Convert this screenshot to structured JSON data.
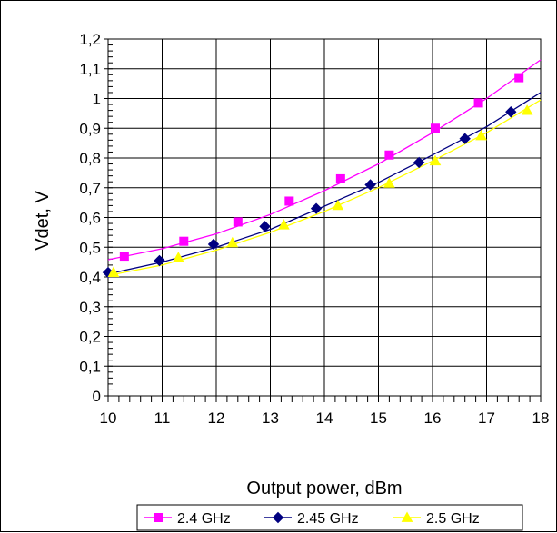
{
  "chart_data": {
    "type": "line",
    "title": "",
    "xlabel": "Output power, dBm",
    "ylabel": "Vdet, V",
    "xlim": [
      10,
      18
    ],
    "ylim": [
      0,
      1.2
    ],
    "x_ticks": [
      "10",
      "11",
      "12",
      "13",
      "14",
      "15",
      "16",
      "17",
      "18"
    ],
    "y_ticks": [
      "0",
      "0,1",
      "0,2",
      "0,3",
      "0,4",
      "0,5",
      "0,6",
      "0,7",
      "0,8",
      "0,9",
      "1",
      "1,1",
      "1,2"
    ],
    "grid": true,
    "legend_position": "bottom",
    "series": [
      {
        "name": "2.4 GHz",
        "color": "#ff00ff",
        "marker": "square",
        "points": [
          [
            10.3,
            0.47
          ],
          [
            11.4,
            0.52
          ],
          [
            12.4,
            0.585
          ],
          [
            13.35,
            0.655
          ],
          [
            14.3,
            0.73
          ],
          [
            15.2,
            0.81
          ],
          [
            16.05,
            0.9
          ],
          [
            16.85,
            0.985
          ],
          [
            17.6,
            1.07
          ]
        ],
        "trend": [
          [
            10,
            0.458
          ],
          [
            11,
            0.495
          ],
          [
            12,
            0.545
          ],
          [
            13,
            0.61
          ],
          [
            14,
            0.69
          ],
          [
            15,
            0.78
          ],
          [
            16,
            0.885
          ],
          [
            17,
            1.0
          ],
          [
            18,
            1.13
          ]
        ]
      },
      {
        "name": "2.45 GHz",
        "color": "#000080",
        "marker": "diamond",
        "points": [
          [
            10,
            0.415
          ],
          [
            10.95,
            0.455
          ],
          [
            11.95,
            0.51
          ],
          [
            12.9,
            0.57
          ],
          [
            13.85,
            0.63
          ],
          [
            14.85,
            0.71
          ],
          [
            15.75,
            0.785
          ],
          [
            16.6,
            0.865
          ],
          [
            17.45,
            0.955
          ]
        ],
        "trend": [
          [
            10,
            0.41
          ],
          [
            11,
            0.45
          ],
          [
            12,
            0.5
          ],
          [
            13,
            0.56
          ],
          [
            14,
            0.638
          ],
          [
            15,
            0.718
          ],
          [
            16,
            0.81
          ],
          [
            17,
            0.905
          ],
          [
            18,
            1.02
          ]
        ]
      },
      {
        "name": "2.5 GHz",
        "color": "#ffff00",
        "marker": "triangle",
        "points": [
          [
            10.1,
            0.415
          ],
          [
            11.3,
            0.465
          ],
          [
            12.3,
            0.515
          ],
          [
            13.25,
            0.575
          ],
          [
            14.25,
            0.64
          ],
          [
            15.2,
            0.715
          ],
          [
            16.05,
            0.79
          ],
          [
            16.9,
            0.875
          ],
          [
            17.75,
            0.96
          ]
        ],
        "trend": [
          [
            10,
            0.405
          ],
          [
            11,
            0.44
          ],
          [
            12,
            0.49
          ],
          [
            13,
            0.55
          ],
          [
            14,
            0.62
          ],
          [
            15,
            0.7
          ],
          [
            16,
            0.79
          ],
          [
            17,
            0.885
          ],
          [
            18,
            0.995
          ]
        ]
      }
    ]
  }
}
